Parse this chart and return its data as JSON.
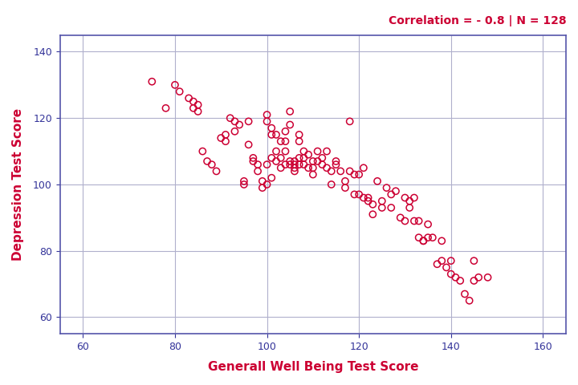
{
  "title_annotation": "Correlation = - 0.8 | N = 128",
  "xlabel": "Generall Well Being Test Score",
  "ylabel": "Depression Test Score",
  "annotation_color": "#CC0033",
  "axis_label_color": "#CC0033",
  "scatter_color": "#CC0033",
  "background_color": "#ffffff",
  "grid_color": "#b0b0cc",
  "axis_border_color": "#5555aa",
  "xlim": [
    55,
    165
  ],
  "ylim": [
    55,
    145
  ],
  "xticks": [
    60,
    80,
    100,
    120,
    140,
    160
  ],
  "yticks": [
    60,
    80,
    100,
    120,
    140
  ],
  "scatter_x": [
    75,
    78,
    80,
    81,
    83,
    84,
    84,
    85,
    85,
    86,
    87,
    88,
    89,
    90,
    91,
    91,
    92,
    93,
    93,
    94,
    95,
    95,
    96,
    96,
    97,
    97,
    98,
    98,
    99,
    99,
    100,
    100,
    100,
    100,
    101,
    101,
    101,
    101,
    102,
    102,
    102,
    103,
    103,
    103,
    104,
    104,
    104,
    104,
    105,
    105,
    105,
    105,
    106,
    106,
    106,
    106,
    107,
    107,
    107,
    107,
    108,
    108,
    108,
    109,
    109,
    110,
    110,
    110,
    111,
    111,
    112,
    112,
    113,
    113,
    114,
    114,
    115,
    115,
    116,
    117,
    117,
    118,
    118,
    119,
    119,
    120,
    120,
    121,
    121,
    122,
    122,
    123,
    123,
    124,
    125,
    125,
    126,
    127,
    127,
    128,
    129,
    130,
    130,
    131,
    131,
    132,
    132,
    133,
    133,
    134,
    134,
    135,
    135,
    136,
    137,
    138,
    138,
    139,
    140,
    140,
    141,
    142,
    143,
    144,
    145,
    145,
    146,
    148
  ],
  "scatter_y": [
    131,
    123,
    130,
    128,
    126,
    125,
    123,
    124,
    122,
    110,
    107,
    106,
    104,
    114,
    115,
    113,
    120,
    119,
    116,
    118,
    101,
    100,
    119,
    112,
    108,
    107,
    106,
    104,
    101,
    99,
    121,
    119,
    106,
    100,
    117,
    115,
    108,
    102,
    115,
    110,
    107,
    113,
    108,
    105,
    116,
    113,
    110,
    106,
    122,
    118,
    107,
    106,
    107,
    106,
    105,
    104,
    115,
    113,
    108,
    106,
    110,
    108,
    106,
    109,
    105,
    107,
    105,
    103,
    110,
    107,
    108,
    106,
    110,
    105,
    104,
    100,
    107,
    106,
    104,
    101,
    99,
    119,
    104,
    103,
    97,
    103,
    97,
    105,
    96,
    96,
    95,
    94,
    91,
    101,
    95,
    93,
    99,
    97,
    93,
    98,
    90,
    89,
    96,
    95,
    93,
    89,
    96,
    89,
    84,
    83,
    83,
    88,
    84,
    84,
    76,
    77,
    83,
    75,
    77,
    73,
    72,
    71,
    67,
    65,
    77,
    71,
    72,
    72
  ]
}
